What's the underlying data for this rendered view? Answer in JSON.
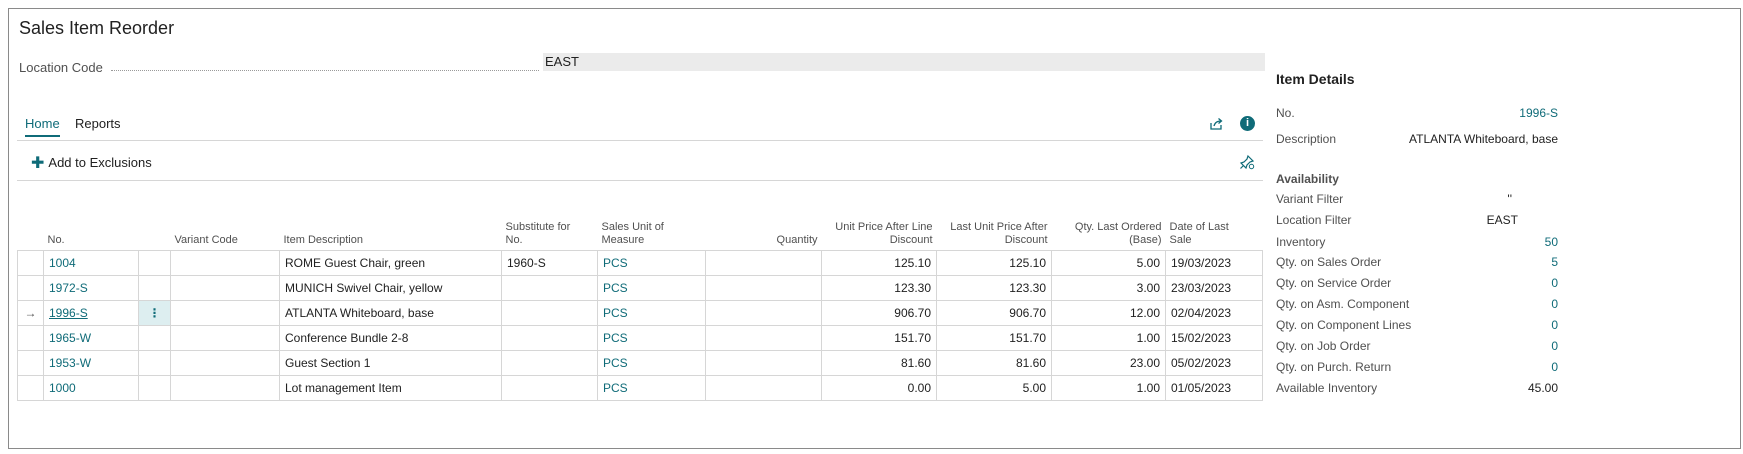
{
  "page": {
    "title": "Sales Item Reorder",
    "location_code_label": "Location Code",
    "location_code_value": "EAST"
  },
  "tabs": [
    {
      "label": "Home",
      "active": true
    },
    {
      "label": "Reports",
      "active": false
    }
  ],
  "actions": {
    "add_to_exclusions": "Add to Exclusions"
  },
  "icons": {
    "share": "share-icon",
    "info": "info-icon",
    "pin": "pin-icon",
    "plus": "plus-icon",
    "row_arrow": "row-arrow-icon",
    "row_menu": "row-menu-icon"
  },
  "colors": {
    "accent": "#0f6b78",
    "selected_row_cell": "#ddeef0",
    "input_bg": "#ebebeb"
  },
  "table": {
    "headers": {
      "no": "No.",
      "variant_code": "Variant Code",
      "item_description": "Item Description",
      "substitute_for_no_l1": "Substitute for",
      "substitute_for_no_l2": "No.",
      "sales_uom_l1": "Sales Unit of",
      "sales_uom_l2": "Measure",
      "quantity": "Quantity",
      "unit_price_l1": "Unit Price After Line",
      "unit_price_l2": "Discount",
      "last_unit_price_l1": "Last Unit Price After",
      "last_unit_price_l2": "Discount",
      "qty_last_ordered_l1": "Qty. Last Ordered",
      "qty_last_ordered_l2": "(Base)",
      "date_last_sale_l1": "Date of Last",
      "date_last_sale_l2": "Sale"
    },
    "rows": [
      {
        "no": "1004",
        "variant": "",
        "desc": "ROME Guest Chair, green",
        "subst": "1960-S",
        "uom": "PCS",
        "qty": "",
        "unit_price": "125.10",
        "last_unit_price": "125.10",
        "qty_last": "5.00",
        "date": "19/03/2023"
      },
      {
        "no": "1972-S",
        "variant": "",
        "desc": "MUNICH Swivel Chair, yellow",
        "subst": "",
        "uom": "PCS",
        "qty": "",
        "unit_price": "123.30",
        "last_unit_price": "123.30",
        "qty_last": "3.00",
        "date": "23/03/2023"
      },
      {
        "no": "1996-S",
        "variant": "",
        "desc": "ATLANTA Whiteboard, base",
        "subst": "",
        "uom": "PCS",
        "qty": "",
        "unit_price": "906.70",
        "last_unit_price": "906.70",
        "qty_last": "12.00",
        "date": "02/04/2023"
      },
      {
        "no": "1965-W",
        "variant": "",
        "desc": "Conference Bundle 2-8",
        "subst": "",
        "uom": "PCS",
        "qty": "",
        "unit_price": "151.70",
        "last_unit_price": "151.70",
        "qty_last": "1.00",
        "date": "15/02/2023"
      },
      {
        "no": "1953-W",
        "variant": "",
        "desc": "Guest Section 1",
        "subst": "",
        "uom": "PCS",
        "qty": "",
        "unit_price": "81.60",
        "last_unit_price": "81.60",
        "qty_last": "23.00",
        "date": "05/02/2023"
      },
      {
        "no": "1000",
        "variant": "",
        "desc": "Lot management Item",
        "subst": "",
        "uom": "PCS",
        "qty": "",
        "unit_price": "0.00",
        "last_unit_price": "5.00",
        "qty_last": "1.00",
        "date": "01/05/2023"
      }
    ],
    "selected_row_index": 2,
    "row_arrow": "→",
    "row_menu": "⋮"
  },
  "details": {
    "title": "Item Details",
    "no_label": "No.",
    "no_value": "1996-S",
    "description_label": "Description",
    "description_value": "ATLANTA Whiteboard, base",
    "availability_heading": "Availability",
    "variant_filter_label": "Variant Filter",
    "variant_filter_value": "''",
    "location_filter_label": "Location Filter",
    "location_filter_value": "EAST",
    "inventory_label": "Inventory",
    "inventory_value": "50",
    "qty_sales_order_label": "Qty. on Sales Order",
    "qty_sales_order_value": "5",
    "qty_service_order_label": "Qty. on Service Order",
    "qty_service_order_value": "0",
    "qty_asm_component_label": "Qty. on Asm. Component",
    "qty_asm_component_value": "0",
    "qty_component_lines_label": "Qty. on Component Lines",
    "qty_component_lines_value": "0",
    "qty_job_order_label": "Qty. on Job Order",
    "qty_job_order_value": "0",
    "qty_purch_return_label": "Qty. on Purch. Return",
    "qty_purch_return_value": "0",
    "available_inventory_label": "Available Inventory",
    "available_inventory_value": "45.00"
  }
}
